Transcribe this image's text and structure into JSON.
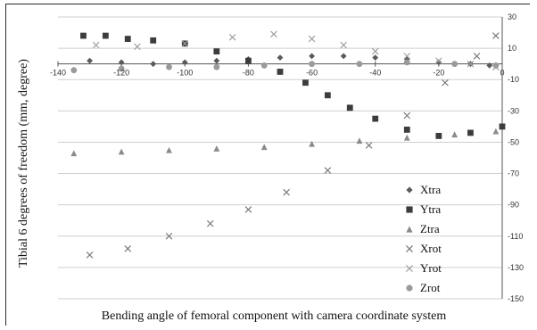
{
  "chart_data": {
    "type": "scatter",
    "xlabel": "Bending angle of femoral component with camera coordinate system",
    "ylabel": "Tibial 6 degrees of freedom (mm, degree)",
    "xlim": [
      -140,
      0
    ],
    "ylim": [
      -150,
      30
    ],
    "x_ticks": [
      -140,
      -120,
      -100,
      -80,
      -60,
      -40,
      -20,
      0
    ],
    "y_ticks": [
      30,
      10,
      -10,
      -30,
      -50,
      -70,
      -90,
      -110,
      -130,
      -150
    ],
    "grid": "horizontal",
    "legend_position": "right",
    "series": [
      {
        "name": "Xtra",
        "marker": "diamond",
        "color": "#5a5a5a",
        "x": [
          -130,
          -120,
          -110,
          -100,
          -90,
          -80,
          -70,
          -60,
          -50,
          -40,
          -30,
          -20,
          -10,
          -4
        ],
        "y": [
          2,
          1,
          0,
          1,
          2,
          3,
          4,
          5,
          5,
          4,
          3,
          1,
          0,
          -1
        ]
      },
      {
        "name": "Ytra",
        "marker": "square",
        "color": "#3c3c3c",
        "x": [
          -132,
          -125,
          -118,
          -110,
          -100,
          -90,
          -80,
          -70,
          -62,
          -55,
          -48,
          -40,
          -30,
          -20,
          -10,
          0
        ],
        "y": [
          18,
          18,
          16,
          15,
          13,
          8,
          2,
          -5,
          -12,
          -20,
          -28,
          -35,
          -42,
          -46,
          -44,
          -40
        ]
      },
      {
        "name": "Ztra",
        "marker": "triangle",
        "color": "#8a8a8a",
        "x": [
          -135,
          -120,
          -105,
          -90,
          -75,
          -60,
          -45,
          -30,
          -15,
          -2
        ],
        "y": [
          -57,
          -56,
          -55,
          -54,
          -53,
          -51,
          -49,
          -47,
          -45,
          -43
        ]
      },
      {
        "name": "Xrot",
        "marker": "x",
        "color": "#7a7a7a",
        "x": [
          -130,
          -118,
          -105,
          -92,
          -80,
          -68,
          -55,
          -42,
          -30,
          -18,
          -8,
          -2
        ],
        "y": [
          -122,
          -118,
          -110,
          -102,
          -93,
          -82,
          -68,
          -52,
          -33,
          -12,
          5,
          18
        ]
      },
      {
        "name": "Yrot",
        "marker": "x",
        "color": "#a0a0a0",
        "x": [
          -128,
          -115,
          -100,
          -85,
          -72,
          -60,
          -50,
          -40,
          -30,
          -20,
          -10,
          -2
        ],
        "y": [
          12,
          11,
          13,
          17,
          19,
          16,
          12,
          8,
          5,
          2,
          0,
          -2
        ]
      },
      {
        "name": "Zrot",
        "marker": "circle",
        "color": "#9a9a9a",
        "x": [
          -135,
          -120,
          -105,
          -90,
          -75,
          -60,
          -45,
          -30,
          -15,
          -2
        ],
        "y": [
          -4,
          -3,
          -2,
          -2,
          -1,
          0,
          0,
          1,
          0,
          -1
        ]
      }
    ]
  }
}
